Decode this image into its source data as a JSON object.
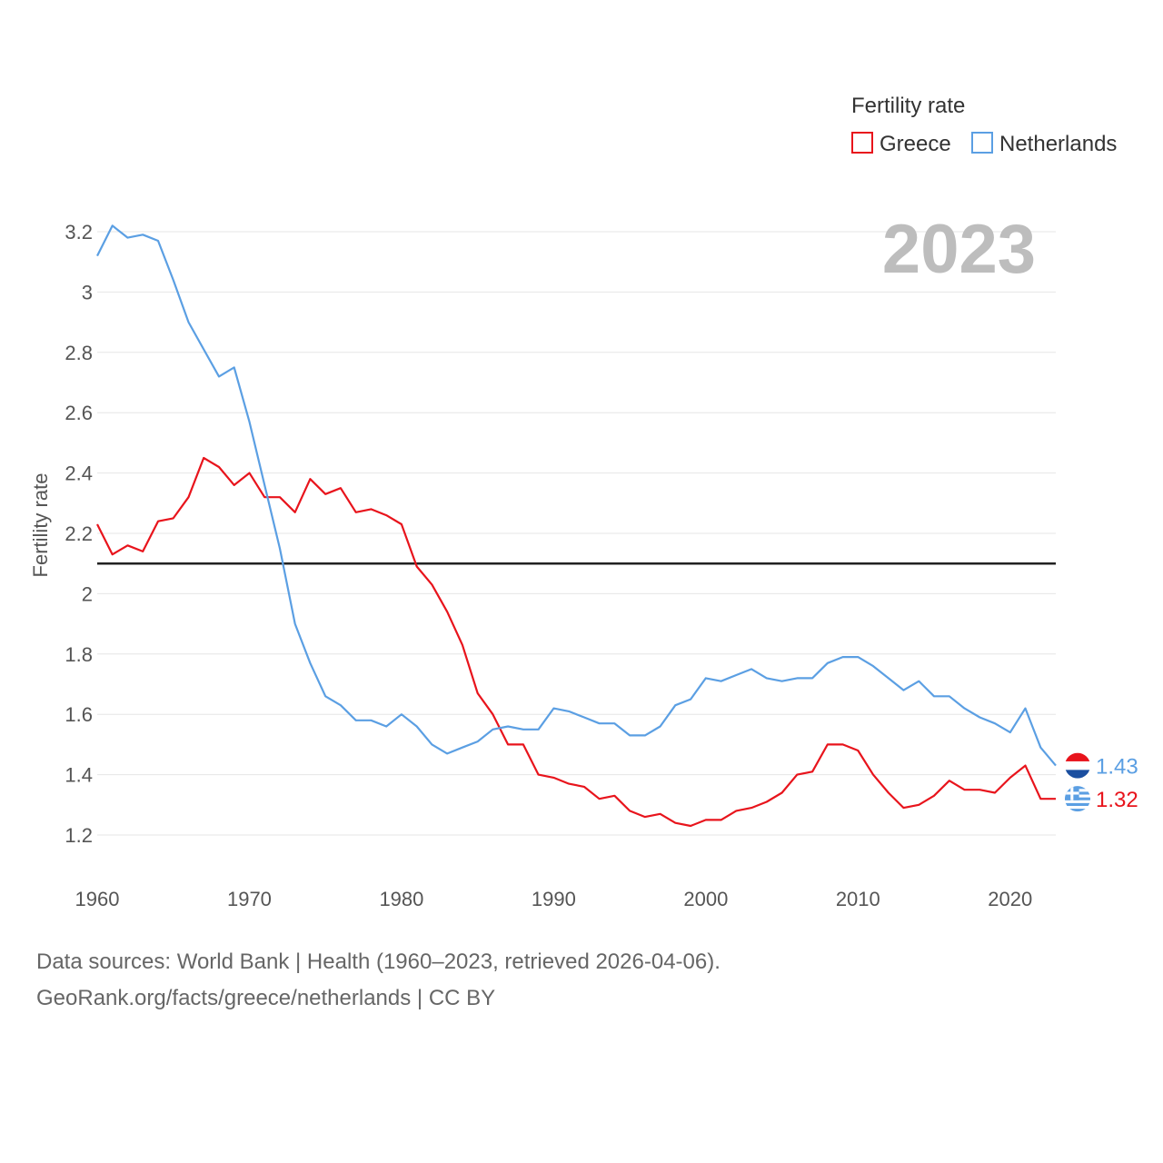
{
  "chart_data": {
    "type": "line",
    "title": "Fertility rate",
    "ylabel": "Fertility rate",
    "xlabel": "",
    "year_label": "2023",
    "xlim": [
      1960,
      2023
    ],
    "ylim": [
      1.1,
      3.3
    ],
    "x_ticks": [
      1960,
      1970,
      1980,
      1990,
      2000,
      2010,
      2020
    ],
    "x_tick_labels": [
      "1960",
      "1970",
      "1980",
      "1990",
      "2000",
      "2010",
      "2020"
    ],
    "y_ticks": [
      1.2,
      1.4,
      1.6,
      1.8,
      2,
      2.2,
      2.4,
      2.6,
      2.8,
      3,
      3.2
    ],
    "y_tick_labels": [
      "1.2",
      "1.4",
      "1.6",
      "1.8",
      "2",
      "2.2",
      "2.4",
      "2.6",
      "2.8",
      "3",
      "3.2"
    ],
    "reference_line": {
      "value": 2.1,
      "color": "#222222"
    },
    "legend_position": "top-right",
    "x": [
      1960,
      1961,
      1962,
      1963,
      1964,
      1965,
      1966,
      1967,
      1968,
      1969,
      1970,
      1971,
      1972,
      1973,
      1974,
      1975,
      1976,
      1977,
      1978,
      1979,
      1980,
      1981,
      1982,
      1983,
      1984,
      1985,
      1986,
      1987,
      1988,
      1989,
      1990,
      1991,
      1992,
      1993,
      1994,
      1995,
      1996,
      1997,
      1998,
      1999,
      2000,
      2001,
      2002,
      2003,
      2004,
      2005,
      2006,
      2007,
      2008,
      2009,
      2010,
      2011,
      2012,
      2013,
      2014,
      2015,
      2016,
      2017,
      2018,
      2019,
      2020,
      2021,
      2022,
      2023
    ],
    "series": [
      {
        "name": "Greece",
        "color": "#e8141c",
        "end_label": "1.32",
        "flag": "greece-flag-icon",
        "values": [
          2.23,
          2.13,
          2.16,
          2.14,
          2.24,
          2.25,
          2.32,
          2.45,
          2.42,
          2.36,
          2.4,
          2.32,
          2.32,
          2.27,
          2.38,
          2.33,
          2.35,
          2.27,
          2.28,
          2.26,
          2.23,
          2.09,
          2.03,
          1.94,
          1.83,
          1.67,
          1.6,
          1.5,
          1.5,
          1.4,
          1.39,
          1.37,
          1.36,
          1.32,
          1.33,
          1.28,
          1.26,
          1.27,
          1.24,
          1.23,
          1.25,
          1.25,
          1.28,
          1.29,
          1.31,
          1.34,
          1.4,
          1.41,
          1.5,
          1.5,
          1.48,
          1.4,
          1.34,
          1.29,
          1.3,
          1.33,
          1.38,
          1.35,
          1.35,
          1.34,
          1.39,
          1.43,
          1.32,
          1.32
        ]
      },
      {
        "name": "Netherlands",
        "color": "#5b9fe3",
        "end_label": "1.43",
        "flag": "netherlands-flag-icon",
        "values": [
          3.12,
          3.22,
          3.18,
          3.19,
          3.17,
          3.04,
          2.9,
          2.81,
          2.72,
          2.75,
          2.57,
          2.36,
          2.15,
          1.9,
          1.77,
          1.66,
          1.63,
          1.58,
          1.58,
          1.56,
          1.6,
          1.56,
          1.5,
          1.47,
          1.49,
          1.51,
          1.55,
          1.56,
          1.55,
          1.55,
          1.62,
          1.61,
          1.59,
          1.57,
          1.57,
          1.53,
          1.53,
          1.56,
          1.63,
          1.65,
          1.72,
          1.71,
          1.73,
          1.75,
          1.72,
          1.71,
          1.72,
          1.72,
          1.77,
          1.79,
          1.79,
          1.76,
          1.72,
          1.68,
          1.71,
          1.66,
          1.66,
          1.62,
          1.59,
          1.57,
          1.54,
          1.62,
          1.49,
          1.43
        ]
      }
    ]
  },
  "footer": {
    "line1": "Data sources: World Bank | Health (1960–2023, retrieved 2026-04-06).",
    "line2": "GeoRank.org/facts/greece/netherlands | CC BY"
  }
}
